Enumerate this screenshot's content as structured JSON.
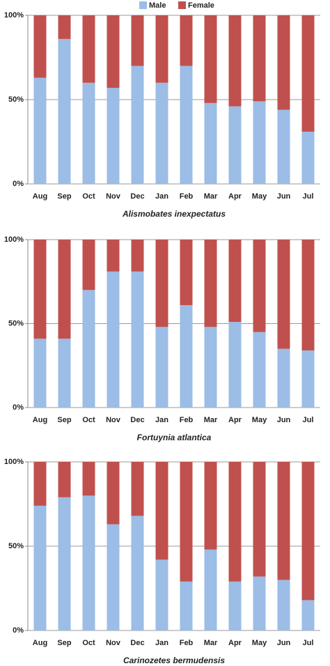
{
  "chart_data": [
    {
      "type": "bar",
      "stacked": true,
      "title": "Alismobates inexpectatus",
      "categories": [
        "Aug",
        "Sep",
        "Oct",
        "Nov",
        "Dec",
        "Jan",
        "Feb",
        "Mar",
        "Apr",
        "May",
        "Jun",
        "Jul"
      ],
      "series": [
        {
          "name": "Male",
          "color": "#9bbde6",
          "values": [
            63,
            86,
            60,
            57,
            70,
            60,
            70,
            48,
            46,
            49,
            44,
            31
          ]
        },
        {
          "name": "Female",
          "color": "#c0504d",
          "values": [
            37,
            14,
            40,
            43,
            30,
            40,
            30,
            52,
            54,
            51,
            56,
            69
          ]
        }
      ],
      "ylim": [
        0,
        100
      ],
      "yticks": [
        {
          "value": 0,
          "label": "0%"
        },
        {
          "value": 50,
          "label": "50%"
        },
        {
          "value": 100,
          "label": "100%"
        }
      ],
      "grid": true,
      "legend": "top"
    },
    {
      "type": "bar",
      "stacked": true,
      "title": "Fortuynia atlantica",
      "categories": [
        "Aug",
        "Sep",
        "Oct",
        "Nov",
        "Dec",
        "Jan",
        "Feb",
        "Mar",
        "Apr",
        "May",
        "Jun",
        "Jul"
      ],
      "series": [
        {
          "color": "#9bbde6",
          "values": [
            41,
            41,
            70,
            81,
            81,
            48,
            61,
            48,
            51,
            45,
            35,
            34
          ]
        },
        {
          "color": "#c0504d",
          "values": [
            59,
            59,
            30,
            19,
            19,
            52,
            39,
            52,
            49,
            55,
            65,
            66
          ]
        }
      ],
      "ylim": [
        0,
        100
      ],
      "yticks": [
        {
          "value": 0,
          "label": "0%"
        },
        {
          "value": 50,
          "label": "50%"
        },
        {
          "value": 100,
          "label": "100%"
        }
      ],
      "grid": true
    },
    {
      "type": "bar",
      "stacked": true,
      "title": "Carinozetes bermudensis",
      "categories": [
        "Aug",
        "Sep",
        "Oct",
        "Nov",
        "Dec",
        "Jan",
        "Feb",
        "Mar",
        "Apr",
        "May",
        "Jun",
        "Jul"
      ],
      "series": [
        {
          "color": "#9bbde6",
          "values": [
            74,
            79,
            80,
            63,
            68,
            42,
            29,
            48,
            29,
            32,
            30,
            18
          ]
        },
        {
          "color": "#c0504d",
          "values": [
            26,
            21,
            20,
            37,
            32,
            58,
            71,
            52,
            71,
            68,
            70,
            82
          ]
        }
      ],
      "ylim": [
        0,
        100
      ],
      "yticks": [
        {
          "value": 0,
          "label": "0%"
        },
        {
          "value": 50,
          "label": "50%"
        },
        {
          "value": 100,
          "label": "100%"
        }
      ],
      "grid": true
    }
  ]
}
